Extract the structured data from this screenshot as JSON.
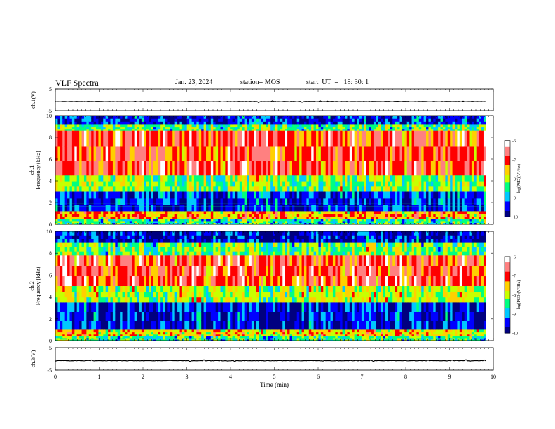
{
  "header": {
    "title": "VLF Spectra",
    "date": "Jan. 23, 2024",
    "station": "station= MOS",
    "start": "start  UT  =   18: 30: 1"
  },
  "colors": {
    "colormap": [
      "#000080",
      "#0000ff",
      "#00c8ff",
      "#00ff80",
      "#c8ff00",
      "#ffd000",
      "#ff0000",
      "#ff8080",
      "#ffffff"
    ],
    "background": "#ffffff",
    "trace": "#000000"
  },
  "chart_data": [
    {
      "type": "line",
      "ylabel": "ch.1(V)",
      "xlim": [
        0,
        10
      ],
      "ylim": [
        -5,
        5
      ],
      "yticks": [
        "5",
        "-5"
      ],
      "series": [
        {
          "values_description_free": true,
          "level": -0.8
        }
      ]
    },
    {
      "type": "heatmap",
      "ylabel_line1": "ch.1",
      "ylabel_line2": "Frequency (kHz)",
      "xlim": [
        0,
        10
      ],
      "ylim": [
        0,
        10
      ],
      "yticks": [
        "0",
        "2",
        "4",
        "6",
        "8",
        "10"
      ],
      "data_end_min": 9.83,
      "colorbar": {
        "label": "log(PSD)(V²/Hz)",
        "ticks": [
          "-6",
          "-7",
          "-8",
          "-9",
          "-10"
        ],
        "range": [
          -10,
          -6
        ]
      },
      "bands": [
        {
          "f_low": 9.2,
          "f_high": 10,
          "level": -9.6
        },
        {
          "f_low": 8.6,
          "f_high": 9.2,
          "level": -8.4
        },
        {
          "f_low": 4.5,
          "f_high": 8.6,
          "level": -6.9
        },
        {
          "f_low": 3.0,
          "f_high": 4.5,
          "level": -8.2
        },
        {
          "f_low": 1.2,
          "f_high": 3.0,
          "level": -9.5
        },
        {
          "f_low": 0.5,
          "f_high": 1.2,
          "level": -7.4
        },
        {
          "f_low": 0.0,
          "f_high": 0.5,
          "level": -8.6
        }
      ],
      "lines_khz": [
        1.6,
        1.95
      ]
    },
    {
      "type": "heatmap",
      "ylabel_line1": "ch.2",
      "ylabel_line2": "Frequency (kHz)",
      "xlim": [
        0,
        10
      ],
      "ylim": [
        0,
        10
      ],
      "yticks": [
        "0",
        "2",
        "4",
        "6",
        "8",
        "10"
      ],
      "data_end_min": 9.83,
      "colorbar": {
        "label": "log(PSD)(V²/Hz)",
        "ticks": [
          "-6",
          "-7",
          "-8",
          "-9",
          "-10"
        ],
        "range": [
          -10,
          -6
        ]
      },
      "bands": [
        {
          "f_low": 9.0,
          "f_high": 10,
          "level": -9.7
        },
        {
          "f_low": 7.8,
          "f_high": 9.0,
          "level": -8.3
        },
        {
          "f_low": 5.0,
          "f_high": 7.8,
          "level": -6.9
        },
        {
          "f_low": 3.5,
          "f_high": 5.0,
          "level": -8.0
        },
        {
          "f_low": 1.0,
          "f_high": 3.5,
          "level": -9.6
        },
        {
          "f_low": 0.4,
          "f_high": 1.0,
          "level": -7.6
        },
        {
          "f_low": 0.0,
          "f_high": 0.4,
          "level": -8.5
        }
      ],
      "lines_khz": []
    },
    {
      "type": "line",
      "ylabel": "ch.3(V)",
      "xlabel": "Time  (min)",
      "xlim": [
        0,
        10
      ],
      "ylim": [
        -5,
        5
      ],
      "yticks": [
        "5",
        "-5"
      ],
      "xticks": [
        "0",
        "1",
        "2",
        "3",
        "4",
        "5",
        "6",
        "7",
        "8",
        "9",
        "10"
      ],
      "series": [
        {
          "level": -0.8
        }
      ]
    }
  ]
}
